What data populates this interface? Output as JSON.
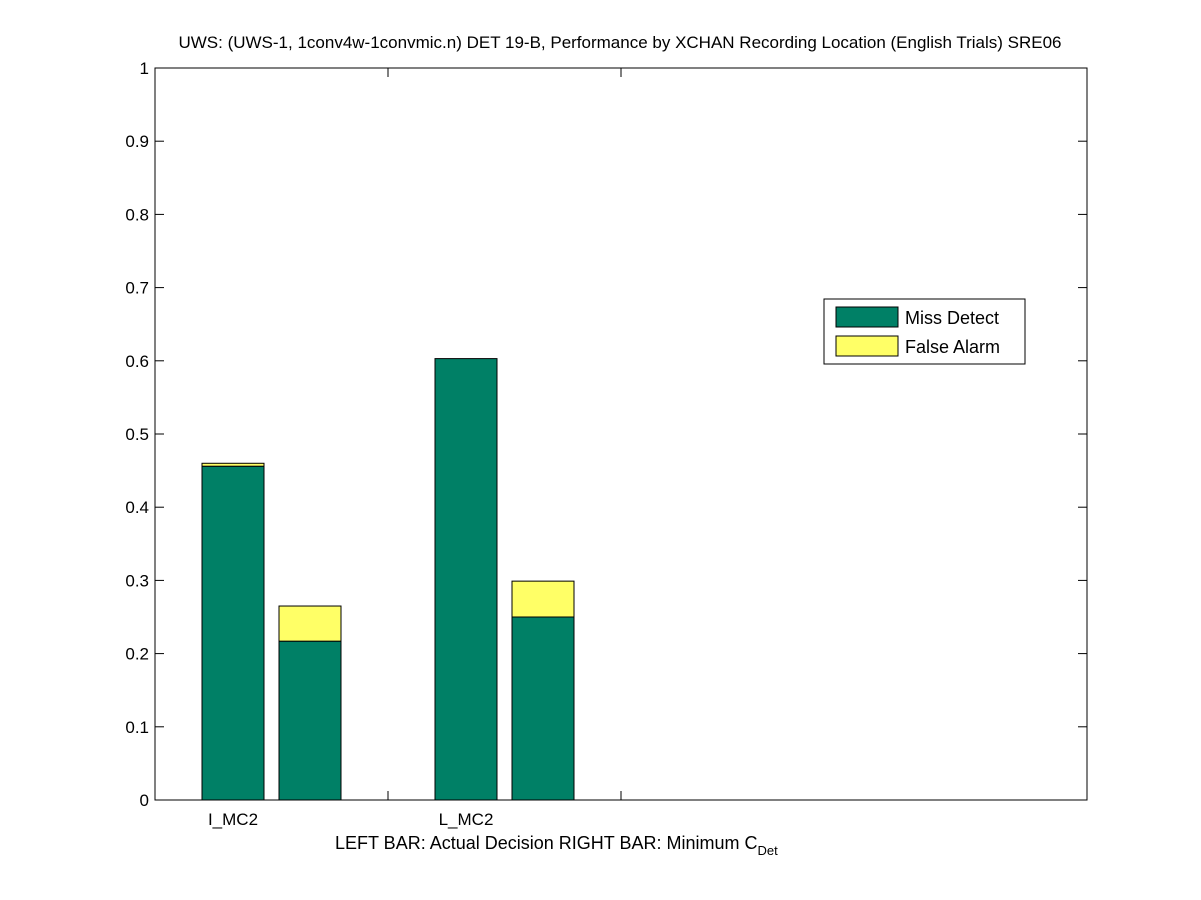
{
  "chart_data": {
    "type": "bar",
    "title": "UWS: (UWS-1, 1conv4w-1convmic.n) DET 19-B,  Performance by XCHAN Recording Location (English Trials) SRE06",
    "xlabel": {
      "left_bar": "LEFT BAR: Actual Decision",
      "right_bar_prefix": "RIGHT BAR: Minimum C",
      "right_bar_subscript": "Det"
    },
    "ylim": [
      0,
      1
    ],
    "yticks": [
      "0",
      "0.1",
      "0.2",
      "0.3",
      "0.4",
      "0.5",
      "0.6",
      "0.7",
      "0.8",
      "0.9",
      "1"
    ],
    "categories": [
      "I_MC2",
      "L_MC2"
    ],
    "stacked": true,
    "bars_per_category": [
      "Actual Decision",
      "Minimum CDet"
    ],
    "series": [
      {
        "name": "Miss Detect",
        "color": "#008066",
        "values": [
          [
            0.456,
            0.217
          ],
          [
            0.603,
            0.25
          ]
        ]
      },
      {
        "name": "False Alarm",
        "color": "#ffff66",
        "values": [
          [
            0.004,
            0.048
          ],
          [
            0.0,
            0.049
          ]
        ]
      }
    ],
    "legend_position": "right"
  }
}
